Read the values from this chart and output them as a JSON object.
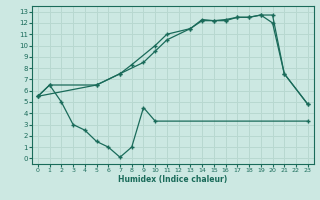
{
  "xlabel": "Humidex (Indice chaleur)",
  "bg_color": "#cce8e2",
  "grid_color": "#b8d8d0",
  "line_color": "#1a6b5a",
  "xlim": [
    -0.5,
    23.5
  ],
  "ylim": [
    -0.5,
    13.5
  ],
  "xticks": [
    0,
    1,
    2,
    3,
    4,
    5,
    6,
    7,
    8,
    9,
    10,
    11,
    12,
    13,
    14,
    15,
    16,
    17,
    18,
    19,
    20,
    21,
    22,
    23
  ],
  "yticks": [
    0,
    1,
    2,
    3,
    4,
    5,
    6,
    7,
    8,
    9,
    10,
    11,
    12,
    13
  ],
  "line1_x": [
    0,
    1,
    2,
    3,
    4,
    5,
    6,
    7,
    8,
    9,
    10,
    23
  ],
  "line1_y": [
    5.5,
    6.5,
    5.0,
    3.0,
    2.5,
    1.5,
    1.0,
    0.1,
    1.0,
    4.5,
    3.3,
    3.3
  ],
  "line2_x": [
    0,
    1,
    5,
    7,
    9,
    10,
    11,
    13,
    14,
    15,
    16,
    17,
    18,
    19,
    20,
    21,
    23
  ],
  "line2_y": [
    5.5,
    6.5,
    6.5,
    7.5,
    8.5,
    9.5,
    10.5,
    11.5,
    12.3,
    12.2,
    12.2,
    12.5,
    12.5,
    12.7,
    12.7,
    7.5,
    4.8
  ],
  "line3_x": [
    0,
    5,
    7,
    8,
    10,
    11,
    13,
    14,
    15,
    16,
    17,
    18,
    19,
    20,
    21,
    23
  ],
  "line3_y": [
    5.5,
    6.5,
    7.5,
    8.3,
    10.0,
    11.0,
    11.5,
    12.2,
    12.2,
    12.3,
    12.5,
    12.5,
    12.7,
    12.0,
    7.5,
    4.8
  ]
}
